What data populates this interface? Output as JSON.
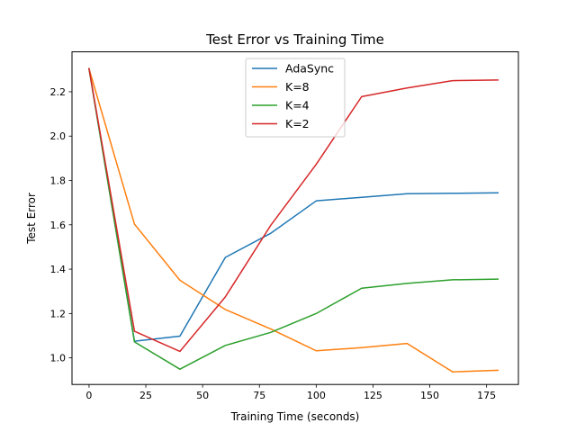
{
  "chart_data": {
    "type": "line",
    "title": "Test Error vs Training Time",
    "xlabel": "Training Time (seconds)",
    "ylabel": "Test Error",
    "xlim": [
      -7.5,
      189
    ],
    "ylim": [
      0.88,
      2.38
    ],
    "xticks": [
      0,
      25,
      50,
      75,
      100,
      125,
      150,
      175
    ],
    "xtick_labels": [
      "0",
      "25",
      "50",
      "75",
      "100",
      "125",
      "150",
      "175"
    ],
    "yticks": [
      1.0,
      1.2,
      1.4,
      1.6,
      1.8,
      2.0,
      2.2
    ],
    "ytick_labels": [
      "1.0",
      "1.2",
      "1.4",
      "1.6",
      "1.8",
      "2.0",
      "2.2"
    ],
    "grid": false,
    "legend": "upper-center",
    "x": [
      0,
      20,
      40,
      60,
      80,
      100,
      120,
      140,
      160,
      180
    ],
    "series": [
      {
        "name": "AdaSync",
        "color": "#1f77b4",
        "values": [
          2.304,
          1.075,
          1.098,
          1.453,
          1.562,
          1.708,
          1.724,
          1.74,
          1.742,
          1.744
        ]
      },
      {
        "name": "K=8",
        "color": "#ff7f0e",
        "values": [
          2.304,
          1.603,
          1.35,
          1.218,
          1.13,
          1.032,
          1.046,
          1.065,
          0.937,
          0.944
        ]
      },
      {
        "name": "K=4",
        "color": "#2ca02c",
        "values": [
          2.304,
          1.072,
          0.949,
          1.056,
          1.115,
          1.2,
          1.314,
          1.336,
          1.352,
          1.355
        ]
      },
      {
        "name": "K=2",
        "color": "#d62728",
        "values": [
          2.304,
          1.12,
          1.029,
          1.275,
          1.598,
          1.873,
          2.178,
          2.217,
          2.25,
          2.253
        ]
      }
    ]
  }
}
